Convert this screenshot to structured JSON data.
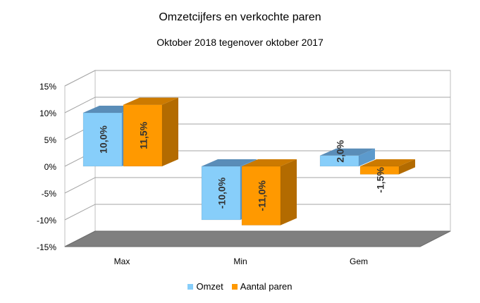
{
  "chart_data": {
    "type": "bar",
    "title": "Omzetcijfers en verkochte paren",
    "subtitle": "Oktober 2018 tegenover oktober 2017",
    "categories": [
      "Max",
      "Min",
      "Gem"
    ],
    "series": [
      {
        "name": "Omzet",
        "values": [
          10.0,
          -10.0,
          2.0
        ],
        "labels": [
          "10,0%",
          "-10,0%",
          "2,0%"
        ],
        "color": "#87CEFA",
        "side_color": "#5C9ACC",
        "top_color": "#5A8DB8"
      },
      {
        "name": "Aantal paren",
        "values": [
          11.5,
          -11.0,
          -1.5
        ],
        "labels": [
          "11,5%",
          "-11,0%",
          "-1,5%"
        ],
        "color": "#FF9900",
        "side_color": "#B36B00",
        "top_color": "#CC7A00"
      }
    ],
    "yticks": [
      "15%",
      "10%",
      "5%",
      "0%",
      "-5%",
      "-10%",
      "-15%"
    ],
    "ytick_values": [
      15,
      10,
      5,
      0,
      -5,
      -10,
      -15
    ],
    "ylim": [
      -15,
      15
    ],
    "grid": true,
    "legend_position": "bottom",
    "style": "3d-clustered-column"
  }
}
